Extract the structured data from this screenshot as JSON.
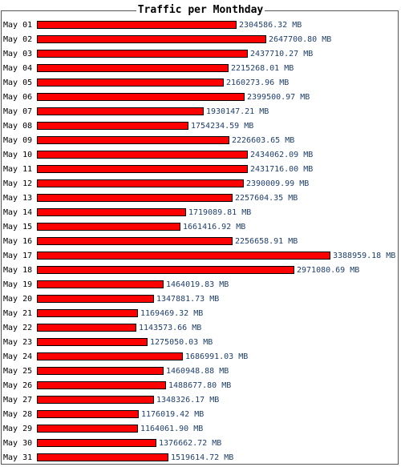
{
  "chart_data": {
    "type": "bar",
    "orientation": "horizontal",
    "title": "Traffic per Monthday",
    "unit": "MB",
    "colors": {
      "bar": "#ff0000",
      "bar_border": "#000000",
      "value_text": "#1f3f6e",
      "frame": "#555555"
    },
    "categories": [
      "May 01",
      "May 02",
      "May 03",
      "May 04",
      "May 05",
      "May 06",
      "May 07",
      "May 08",
      "May 09",
      "May 10",
      "May 11",
      "May 12",
      "May 13",
      "May 14",
      "May 15",
      "May 16",
      "May 17",
      "May 18",
      "May 19",
      "May 20",
      "May 21",
      "May 22",
      "May 23",
      "May 24",
      "May 25",
      "May 26",
      "May 27",
      "May 28",
      "May 29",
      "May 30",
      "May 31"
    ],
    "values": [
      2304586.32,
      2647700.8,
      2437710.27,
      2215268.01,
      2160273.96,
      2399500.97,
      1930147.21,
      1754234.59,
      2226603.65,
      2434062.09,
      2431716.0,
      2390009.99,
      2257604.35,
      1719089.81,
      1661416.92,
      2256658.91,
      3388959.18,
      2971080.69,
      1464019.83,
      1347881.73,
      1169469.32,
      1143573.66,
      1275050.03,
      1686991.03,
      1460948.88,
      1488677.8,
      1348326.17,
      1176019.42,
      1164061.9,
      1376662.72,
      1519614.72
    ],
    "value_labels": [
      "2304586.32 MB",
      "2647700.80 MB",
      "2437710.27 MB",
      "2215268.01 MB",
      "2160273.96 MB",
      "2399500.97 MB",
      "1930147.21 MB",
      "1754234.59 MB",
      "2226603.65 MB",
      "2434062.09 MB",
      "2431716.00 MB",
      "2390009.99 MB",
      "2257604.35 MB",
      "1719089.81 MB",
      "1661416.92 MB",
      "2256658.91 MB",
      "3388959.18 MB",
      "2971080.69 MB",
      "1464019.83 MB",
      "1347881.73 MB",
      "1169469.32 MB",
      "1143573.66 MB",
      "1275050.03 MB",
      "1686991.03 MB",
      "1460948.88 MB",
      "1488677.80 MB",
      "1348326.17 MB",
      "1176019.42 MB",
      "1164061.90 MB",
      "1376662.72 MB",
      "1519614.72 MB"
    ]
  }
}
